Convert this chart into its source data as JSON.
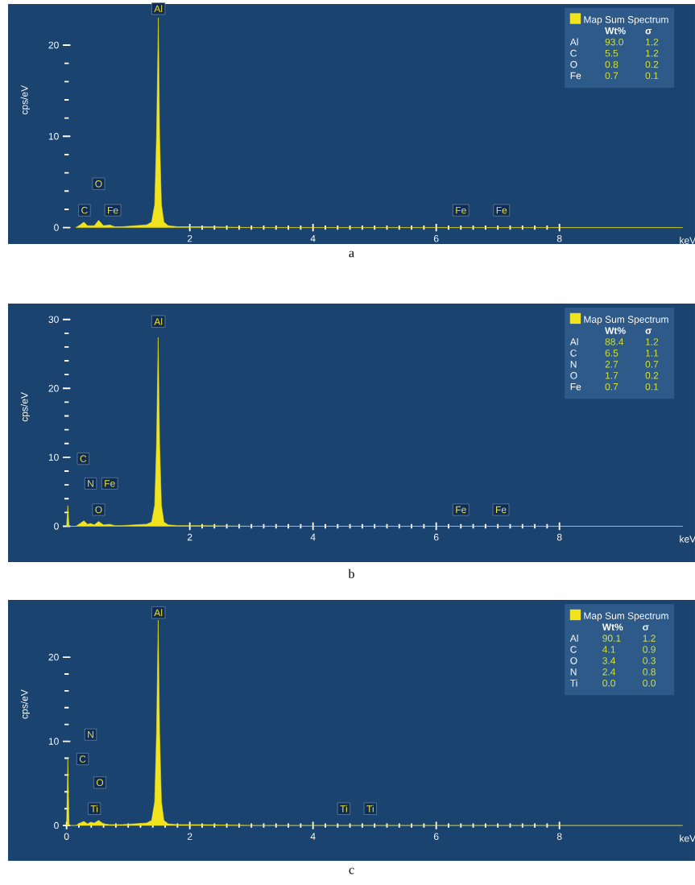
{
  "chart_data": [
    {
      "type": "area",
      "title": "a",
      "xlabel": "keV",
      "ylabel": "cps/eV",
      "legend": "top right",
      "x": [
        0.15,
        0.22,
        0.28,
        0.34,
        0.45,
        0.52,
        0.6,
        0.7,
        0.78,
        0.9,
        1.1,
        1.3,
        1.38,
        1.43,
        1.46,
        1.49,
        1.51,
        1.54,
        1.58,
        1.65,
        1.8,
        2.2,
        3,
        5,
        7,
        10
      ],
      "series": [
        {
          "name": "Map Sum Spectrum",
          "color": "#f2e41c",
          "values": [
            0,
            0.3,
            0.6,
            0.2,
            0.2,
            0.8,
            0.2,
            0.3,
            0.1,
            0.1,
            0.2,
            0.3,
            0.6,
            2.5,
            10,
            23,
            10,
            2.5,
            0.6,
            0.2,
            0.1,
            0.1,
            0,
            0,
            0,
            0
          ]
        }
      ],
      "xlim": [
        -0.95,
        10.2
      ],
      "ylim": [
        -1.8,
        24.5
      ],
      "xticks": [
        2,
        4,
        6,
        8
      ],
      "yticks": [
        0,
        10,
        20
      ],
      "annotations": [
        "Wt%",
        "σ",
        "Al",
        "93.0",
        "1.2",
        "C",
        "5.5",
        "1.2",
        "O",
        "0.8",
        "0.2",
        "Fe",
        "0.7",
        "0.1",
        {
          "text": "C",
          "x": 0.29,
          "y": 1.9
        },
        {
          "text": "O",
          "x": 0.52,
          "y": 4.8
        },
        {
          "text": "Fe",
          "x": 0.75,
          "y": 1.9
        },
        {
          "text": "Al",
          "x": 1.49,
          "y": 24.0
        },
        {
          "text": "Fe",
          "x": 6.4,
          "y": 1.9
        },
        {
          "text": "Fe",
          "x": 7.06,
          "y": 1.9
        }
      ]
    },
    {
      "type": "area",
      "title": "b",
      "xlabel": "keV",
      "ylabel": "cps/eV",
      "legend": "top right",
      "x": [
        0,
        0.02,
        0.04,
        0.15,
        0.22,
        0.28,
        0.34,
        0.39,
        0.45,
        0.52,
        0.6,
        0.7,
        0.78,
        0.9,
        1.1,
        1.3,
        1.38,
        1.43,
        1.46,
        1.487,
        1.51,
        1.54,
        1.58,
        1.65,
        1.8,
        2.2,
        3,
        5,
        7,
        10
      ],
      "series": [
        {
          "name": "Map Sum Spectrum",
          "color": "#f2e41c",
          "values": [
            0,
            3,
            0,
            0,
            0.4,
            0.8,
            0.3,
            0.4,
            0.2,
            0.7,
            0.2,
            0.3,
            0.1,
            0.1,
            0.2,
            0.3,
            0.6,
            3,
            12,
            27.4,
            12,
            3,
            0.6,
            0.2,
            0.1,
            0.1,
            0,
            0,
            0,
            0
          ]
        }
      ],
      "xlim": [
        -0.95,
        10.2
      ],
      "ylim": [
        -5.2,
        32.3
      ],
      "xticks": [
        2,
        4,
        6,
        8
      ],
      "yticks": [
        0,
        10,
        20,
        30
      ],
      "annotations": [
        "Wt%",
        "σ",
        "Al",
        "88.4",
        "1.2",
        "C",
        "6.5",
        "1.1",
        "N",
        "2.7",
        "0.7",
        "O",
        "1.7",
        "0.2",
        "Fe",
        "0.7",
        "0.1",
        {
          "text": "C",
          "x": 0.27,
          "y": 9.8
        },
        {
          "text": "N",
          "x": 0.39,
          "y": 6.2
        },
        {
          "text": "Fe",
          "x": 0.7,
          "y": 6.2
        },
        {
          "text": "O",
          "x": 0.52,
          "y": 2.4
        },
        {
          "text": "Al",
          "x": 1.49,
          "y": 29.7
        },
        {
          "text": "Fe",
          "x": 6.4,
          "y": 2.4
        },
        {
          "text": "Fe",
          "x": 7.05,
          "y": 2.4
        }
      ]
    },
    {
      "type": "area",
      "title": "c",
      "xlabel": "keV",
      "ylabel": "cps/eV",
      "legend": "top right",
      "x": [
        0,
        0.02,
        0.04,
        0.15,
        0.22,
        0.28,
        0.34,
        0.39,
        0.45,
        0.52,
        0.6,
        0.7,
        0.78,
        0.9,
        1.1,
        1.3,
        1.38,
        1.43,
        1.46,
        1.487,
        1.51,
        1.54,
        1.58,
        1.65,
        1.8,
        2.2,
        3,
        5,
        7,
        10
      ],
      "series": [
        {
          "name": "Map Sum Spectrum",
          "color": "#f2e41c",
          "values": [
            0,
            7.9,
            0,
            0,
            0.3,
            0.5,
            0.2,
            0.4,
            0.3,
            0.6,
            0.2,
            0.1,
            0.1,
            0.1,
            0.2,
            0.3,
            0.6,
            2.8,
            11,
            24.4,
            11,
            2.8,
            0.6,
            0.2,
            0.1,
            0.1,
            0,
            0,
            0,
            0
          ]
        }
      ],
      "xlim": [
        -0.95,
        10.2
      ],
      "ylim": [
        -4.2,
        26.8
      ],
      "xticks": [
        0,
        2,
        4,
        6,
        8
      ],
      "yticks": [
        0,
        10,
        20
      ],
      "annotations": [
        "Wt%",
        "σ",
        "Al",
        "90.1",
        "1.2",
        "C",
        "4.1",
        "0.9",
        "O",
        "3.4",
        "0.3",
        "N",
        "2.4",
        "0.8",
        "Ti",
        "0.0",
        "0.0",
        {
          "text": "N",
          "x": 0.39,
          "y": 10.8
        },
        {
          "text": "C",
          "x": 0.26,
          "y": 7.9
        },
        {
          "text": "O",
          "x": 0.54,
          "y": 5.1
        },
        {
          "text": "Ti",
          "x": 0.45,
          "y": 2.0
        },
        {
          "text": "Al",
          "x": 1.49,
          "y": 25.3
        },
        {
          "text": "Ti",
          "x": 4.5,
          "y": 2.0
        },
        {
          "text": "Ti",
          "x": 4.93,
          "y": 2.0
        }
      ]
    }
  ]
}
